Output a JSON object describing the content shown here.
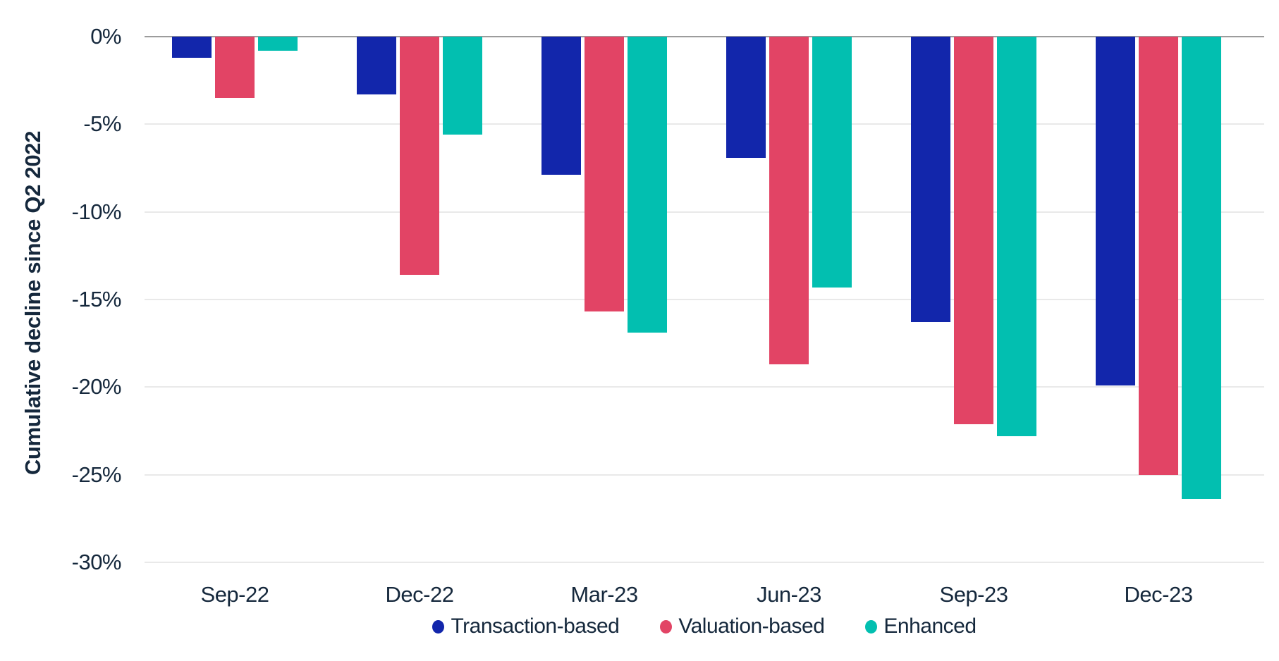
{
  "chart_data": {
    "type": "bar",
    "title": "",
    "ylabel": "Cumulative decline since Q2 2022",
    "xlabel": "",
    "categories": [
      "Sep-22",
      "Dec-22",
      "Mar-23",
      "Jun-23",
      "Sep-23",
      "Dec-23"
    ],
    "series": [
      {
        "name": "Transaction-based",
        "color": "#1226AB",
        "values": [
          -1.2,
          -3.3,
          -7.9,
          -6.9,
          -16.3,
          -19.9
        ]
      },
      {
        "name": "Valuation-based",
        "color": "#E24465",
        "values": [
          -3.5,
          -13.6,
          -15.7,
          -18.7,
          -22.1,
          -25.0
        ]
      },
      {
        "name": "Enhanced",
        "color": "#02BFB0",
        "values": [
          -0.8,
          -5.6,
          -16.9,
          -14.3,
          -22.8,
          -26.4
        ]
      }
    ],
    "y_ticks": [
      "0%",
      "-5%",
      "-10%",
      "-15%",
      "-20%",
      "-25%",
      "-30%"
    ],
    "ylim": [
      -30,
      0
    ],
    "grid": true,
    "legend_position": "bottom",
    "value_unit": "%"
  },
  "colors": {
    "background": "#ffffff",
    "text": "#15283C",
    "gridline": "#e9e9e9",
    "zero_line": "#9c9c9c"
  }
}
